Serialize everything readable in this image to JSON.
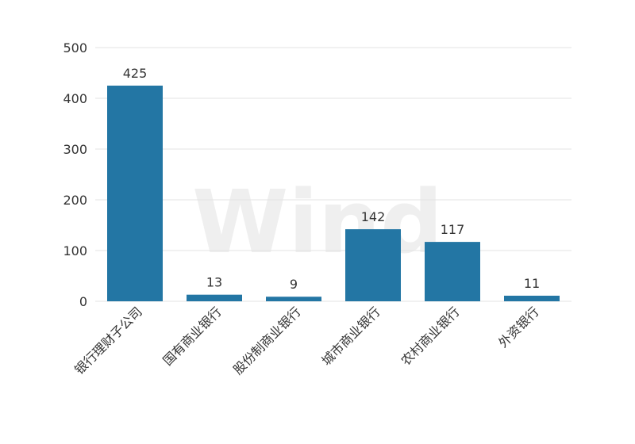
{
  "chart_data": {
    "type": "bar",
    "watermark": "Wind",
    "categories": [
      "银行理财子公司",
      "国有商业银行",
      "股份制商业银行",
      "城市商业银行",
      "农村商业银行",
      "外资银行"
    ],
    "values": [
      425,
      13,
      9,
      142,
      117,
      11
    ],
    "color": "#2376a4",
    "ylim": [
      0,
      500
    ],
    "yticks": [
      0,
      100,
      200,
      300,
      400,
      500
    ],
    "grid": true,
    "value_labels_shown": true
  }
}
